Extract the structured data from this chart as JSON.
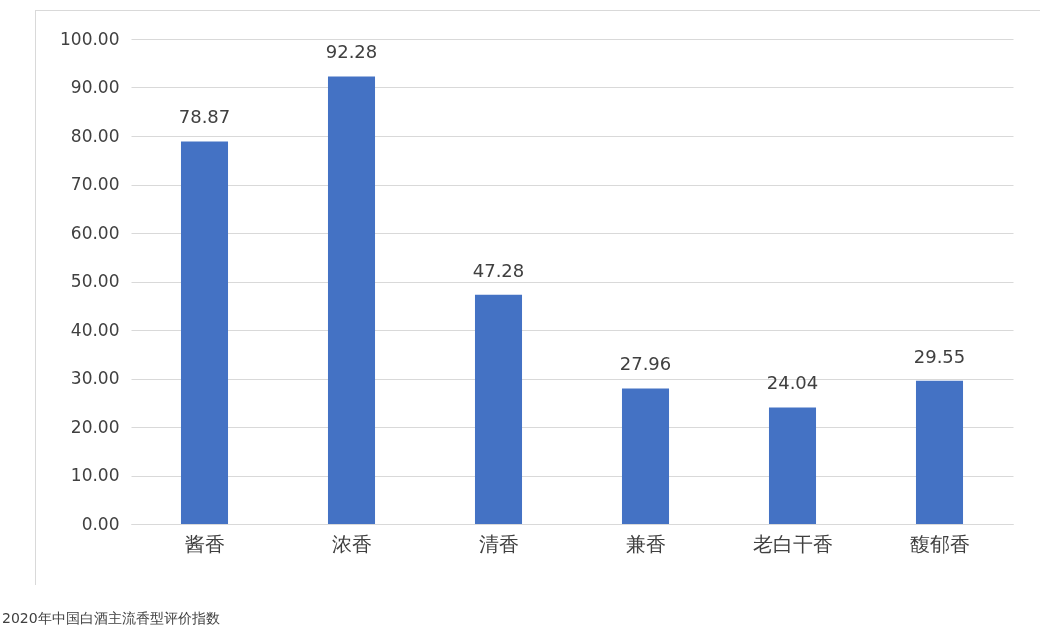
{
  "chart_data": {
    "type": "bar",
    "categories": [
      "酱香",
      "浓香",
      "清香",
      "兼香",
      "老白干香",
      "馥郁香"
    ],
    "values": [
      78.87,
      92.28,
      47.28,
      27.96,
      24.04,
      29.55
    ],
    "color": "#4472c4",
    "data_labels": true,
    "grid": "y",
    "ylim": [
      0,
      100
    ],
    "yticks": [
      {
        "value": 0,
        "label": "0.00"
      },
      {
        "value": 10,
        "label": "10.00"
      },
      {
        "value": 20,
        "label": "20.00"
      },
      {
        "value": 30,
        "label": "30.00"
      },
      {
        "value": 40,
        "label": "40.00"
      },
      {
        "value": 50,
        "label": "50.00"
      },
      {
        "value": 60,
        "label": "60.00"
      },
      {
        "value": 70,
        "label": "70.00"
      },
      {
        "value": 80,
        "label": "80.00"
      },
      {
        "value": 90,
        "label": "90.00"
      },
      {
        "value": 100,
        "label": "100.00"
      }
    ],
    "annotations": [
      "2020年中国白酒主流香型评价指数"
    ]
  }
}
